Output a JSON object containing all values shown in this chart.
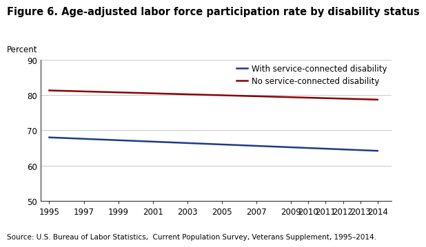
{
  "title": "Figure 6. Age-adjusted labor force participation rate by disability status",
  "ylabel": "Percent",
  "source": "Source: U.S. Bureau of Labor Statistics,  Current Population Survey, Veterans Supplement, 1995–2014.",
  "x_ticks": [
    1995,
    1997,
    1999,
    2001,
    2003,
    2005,
    2007,
    2009,
    2010,
    2011,
    2012,
    2013,
    2014
  ],
  "xlim": [
    1994.5,
    2014.8
  ],
  "ylim": [
    50,
    90
  ],
  "y_ticks": [
    50,
    60,
    70,
    80,
    90
  ],
  "with_disability": {
    "years": [
      1995,
      2014
    ],
    "values": [
      68.0,
      64.2
    ],
    "color": "#1C3A8A",
    "label": "With service-connected disability",
    "linewidth": 1.8
  },
  "no_disability": {
    "years": [
      1995,
      2014
    ],
    "values": [
      81.3,
      78.7
    ],
    "color": "#8B0000",
    "label": "No service-connected disability",
    "linewidth": 1.8
  },
  "background_color": "#FFFFFF",
  "grid_color": "#C8C8C8",
  "title_fontsize": 10.5,
  "ylabel_fontsize": 8.5,
  "tick_fontsize": 8.5,
  "legend_fontsize": 8.5,
  "source_fontsize": 7.5
}
